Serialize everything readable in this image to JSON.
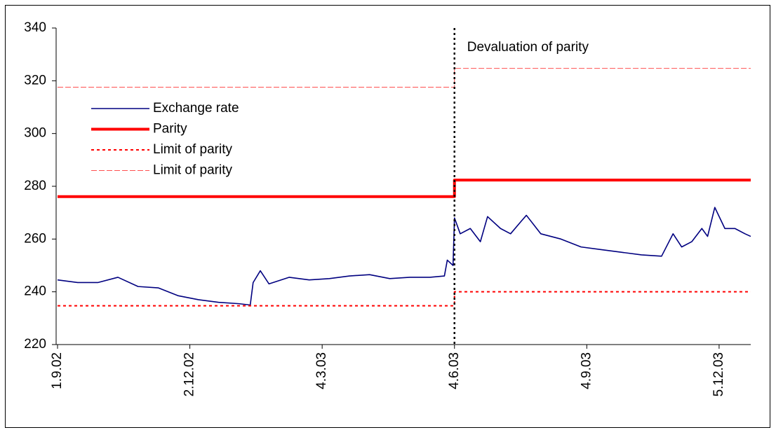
{
  "chart_data": {
    "type": "line",
    "ylim": [
      220,
      340
    ],
    "yticks": [
      220,
      240,
      260,
      280,
      300,
      320,
      340
    ],
    "xlim": [
      "1.9.02",
      "27.12.03"
    ],
    "xticks": [
      "1.9.02",
      "2.12.02",
      "4.3.03",
      "4.6.03",
      "4.9.03",
      "5.12.03"
    ],
    "legend": "upper left",
    "annotations": [
      {
        "text": "Devaluation of parity",
        "x": "4.6.03"
      }
    ],
    "series": [
      {
        "name": "Exchange rate",
        "color": "#000080",
        "line_style": "solid",
        "x": [
          "1.9.02",
          "15.9.02",
          "29.9.02",
          "13.10.02",
          "27.10.02",
          "10.11.02",
          "24.11.02",
          "8.12.02",
          "22.12.02",
          "5.1.03",
          "13.1.03",
          "15.1.03",
          "20.1.03",
          "26.1.03",
          "9.2.03",
          "23.2.03",
          "9.3.03",
          "23.3.03",
          "6.4.03",
          "20.4.03",
          "4.5.03",
          "18.5.03",
          "28.5.03",
          "30.5.03",
          "3.6.03",
          "4.6.03",
          "8.6.03",
          "15.6.03",
          "22.6.03",
          "27.6.03",
          "6.7.03",
          "13.7.03",
          "20.7.03",
          "24.7.03",
          "3.8.03",
          "17.8.03",
          "31.8.03",
          "14.9.03",
          "28.9.03",
          "12.10.03",
          "26.10.03",
          "3.11.03",
          "9.11.03",
          "16.11.03",
          "23.11.03",
          "27.11.03",
          "2.12.03",
          "9.12.03",
          "16.12.03",
          "23.12.03",
          "27.12.03"
        ],
        "values": [
          244.5,
          243.5,
          243.5,
          245.5,
          242,
          241.5,
          238.5,
          237,
          236,
          235.5,
          235,
          243.5,
          248,
          243,
          245.5,
          244.5,
          245,
          246,
          246.5,
          245,
          245.5,
          245.5,
          246,
          252,
          250,
          268,
          262,
          264,
          259,
          268.5,
          264,
          262,
          266.5,
          269,
          262,
          260,
          257,
          256,
          255,
          254,
          253.5,
          262,
          257,
          259,
          264,
          261,
          272,
          264,
          264,
          262,
          261
        ]
      },
      {
        "name": "Parity",
        "color": "#ff0000",
        "line_style": "thick",
        "x": [
          "1.9.02",
          "4.6.03",
          "4.6.03",
          "27.12.03"
        ],
        "values": [
          276.1,
          276.1,
          282.36,
          282.36
        ]
      },
      {
        "name": "Limit of parity",
        "color": "#ff0000",
        "line_style": "dotted",
        "x": [
          "1.9.02",
          "4.6.03",
          "4.6.03",
          "27.12.03"
        ],
        "values": [
          234.69,
          234.69,
          240.01,
          240.01
        ]
      },
      {
        "name": "Limit of parity",
        "color": "#ff5050",
        "line_style": "dashed",
        "x": [
          "1.9.02",
          "4.6.03",
          "4.6.03",
          "27.12.03"
        ],
        "values": [
          317.56,
          317.56,
          324.71,
          324.71
        ]
      }
    ]
  }
}
